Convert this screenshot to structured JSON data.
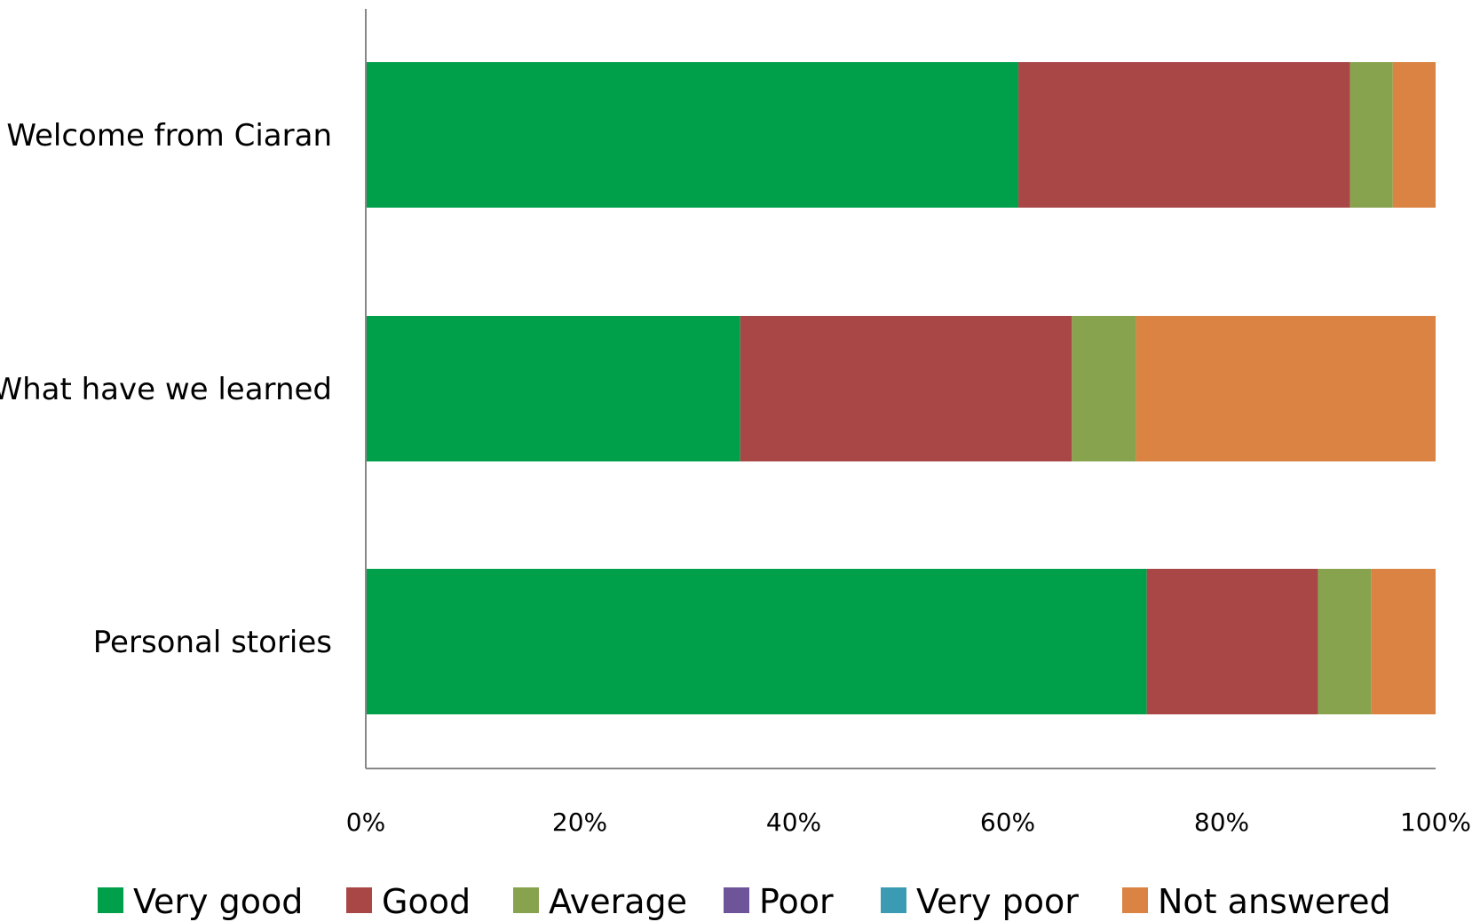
{
  "chart_data": {
    "type": "bar",
    "orientation": "horizontal",
    "stacked": "percent",
    "categories": [
      "Welcome from Ciaran",
      "What have we learned",
      "Personal stories"
    ],
    "series": [
      {
        "name": "Very good",
        "color": "#00A04A",
        "values": [
          61,
          35,
          73
        ]
      },
      {
        "name": "Good",
        "color": "#A94747",
        "values": [
          31,
          31,
          16
        ]
      },
      {
        "name": "Average",
        "color": "#88A34E",
        "values": [
          4,
          6,
          5
        ]
      },
      {
        "name": "Poor",
        "color": "#6E559A",
        "values": [
          0,
          0,
          0
        ]
      },
      {
        "name": "Very poor",
        "color": "#3B9BB2",
        "values": [
          0,
          0,
          0
        ]
      },
      {
        "name": "Not answered",
        "color": "#DB8342",
        "values": [
          4,
          28,
          6
        ]
      }
    ],
    "xticks": [
      "0%",
      "20%",
      "40%",
      "60%",
      "80%",
      "100%"
    ],
    "xlim": [
      0,
      100
    ],
    "title": "",
    "xlabel": "",
    "ylabel": "",
    "grid": false,
    "legend": "bottom"
  }
}
